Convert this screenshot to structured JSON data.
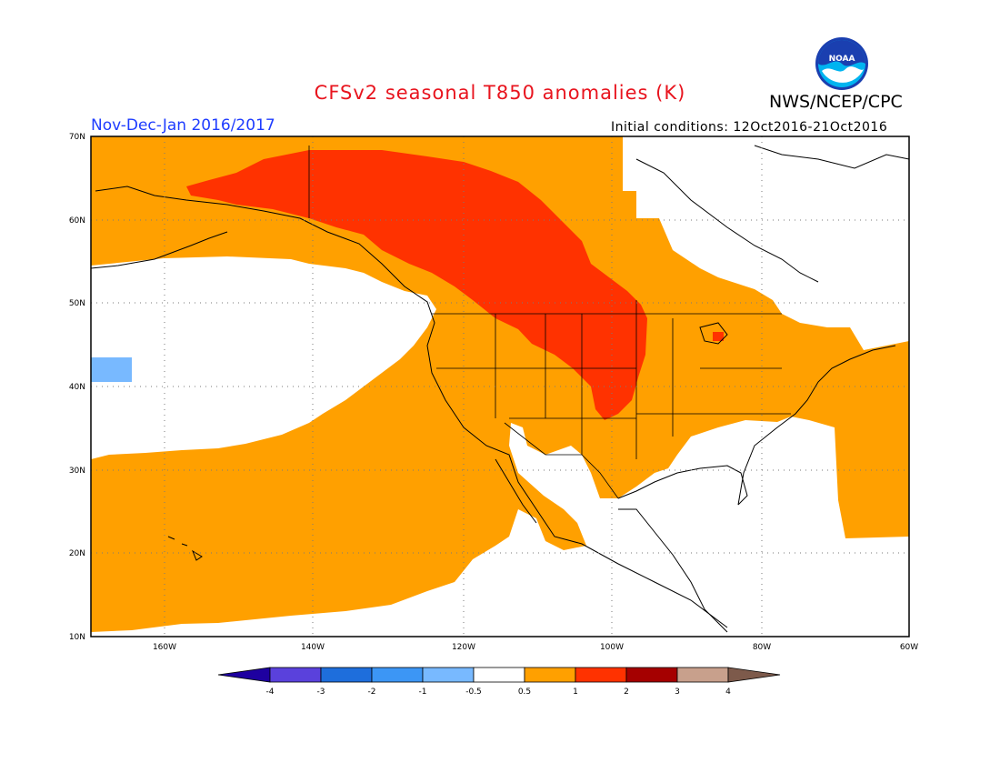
{
  "header": {
    "title": "CFSv2 seasonal T850 anomalies (K)",
    "agency": "NWS/NCEP/CPC",
    "period": "Nov-Dec-Jan 2016/2017",
    "initial_conditions": "Initial conditions: 12Oct2016-21Oct2016",
    "logo_text": "NOAA"
  },
  "map": {
    "lat_labels": [
      "70N",
      "60N",
      "50N",
      "40N",
      "30N",
      "20N",
      "10N"
    ],
    "lon_labels": [
      "160W",
      "140W",
      "120W",
      "100W",
      "80W",
      "60W"
    ],
    "lat_range": [
      10,
      70
    ],
    "lon_range": [
      -173,
      -60
    ],
    "grid": "dotted",
    "regions": [
      {
        "name": "anomaly-0.5-to-1-band",
        "range": "0.5 to 1",
        "color": "#ffa000"
      },
      {
        "name": "anomaly-1-to-2-core",
        "range": "1 to 2",
        "color": "#ff3200"
      },
      {
        "name": "anomaly-neg1-to-neg0.5-patch",
        "range": "-1 to -0.5",
        "color": "#78b9ff"
      }
    ]
  },
  "colorbar": {
    "labels": [
      "-4",
      "-3",
      "-2",
      "-1",
      "-0.5",
      "0.5",
      "1",
      "2",
      "3",
      "4"
    ],
    "colors": [
      "#1e00a0",
      "#5a41dc",
      "#1e6edc",
      "#3c96f5",
      "#78b9ff",
      "#ffffff",
      "#ffa000",
      "#ff3200",
      "#a50000",
      "#c8a08c",
      "#7d5a4b"
    ]
  }
}
